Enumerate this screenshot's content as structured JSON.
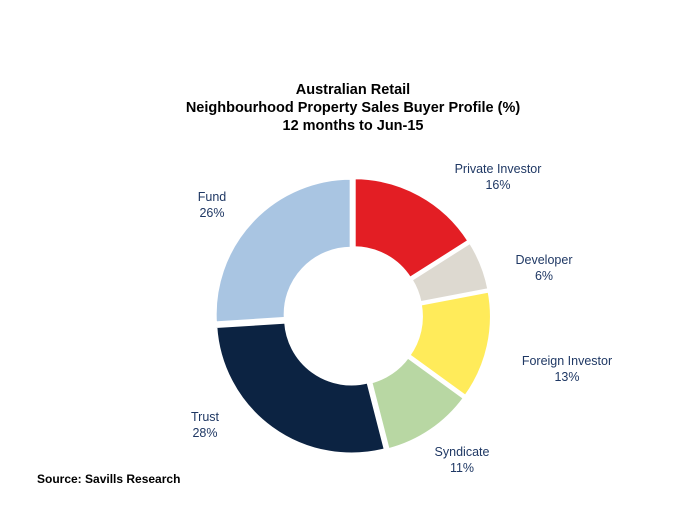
{
  "chart_data": {
    "type": "pie",
    "style": "donut",
    "title_lines": [
      "Australian Retail",
      "Neighbourhood Property Sales Buyer Profile (%)",
      "12 months to Jun-15"
    ],
    "unit": "%",
    "slices": [
      {
        "name": "Private Investor",
        "value": 16,
        "label": "16%",
        "color": "#e31e24"
      },
      {
        "name": "Developer",
        "value": 6,
        "label": "6%",
        "color": "#ddd9d0"
      },
      {
        "name": "Foreign Investor",
        "value": 13,
        "label": "13%",
        "color": "#ffeb5a"
      },
      {
        "name": "Syndicate",
        "value": 11,
        "label": "11%",
        "color": "#b8d7a3"
      },
      {
        "name": "Trust",
        "value": 28,
        "label": "28%",
        "color": "#0c2342"
      },
      {
        "name": "Fund",
        "value": 26,
        "label": "26%",
        "color": "#a9c5e2"
      }
    ],
    "legend": "none",
    "source": "Source: Savills Research"
  }
}
